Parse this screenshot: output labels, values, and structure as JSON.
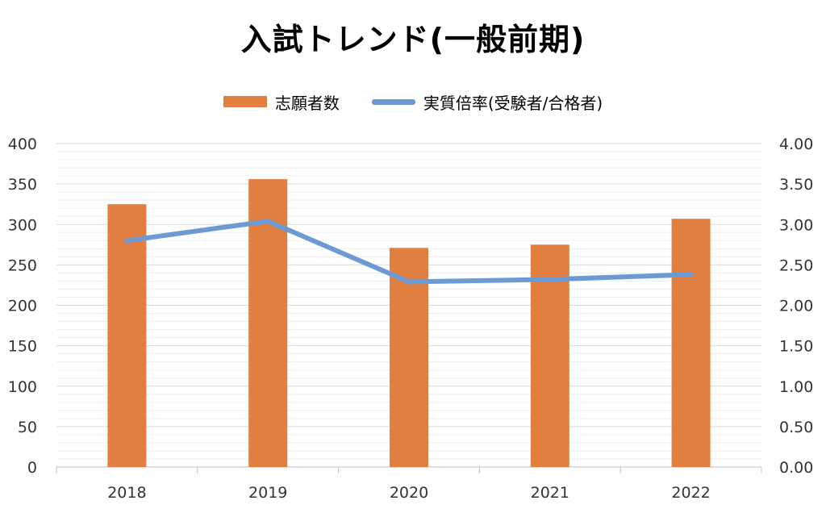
{
  "chart_data": {
    "type": "bar",
    "title": "入試トレンド(一般前期)",
    "categories": [
      "2018",
      "2019",
      "2020",
      "2021",
      "2022"
    ],
    "series": [
      {
        "name": "志願者数",
        "kind": "bar",
        "axis": "left",
        "color": "#E07F40",
        "values": [
          325,
          356,
          271,
          275,
          307
        ]
      },
      {
        "name": "実質倍率(受験者/合格者)",
        "kind": "line",
        "axis": "right",
        "color": "#6D9AD3",
        "values": [
          2.8,
          3.04,
          2.29,
          2.32,
          2.38
        ]
      }
    ],
    "y_left": {
      "min": 0,
      "max": 400,
      "ticks": [
        "0",
        "50",
        "100",
        "150",
        "200",
        "250",
        "300",
        "350",
        "400"
      ]
    },
    "y_right": {
      "min": 0,
      "max": 4,
      "ticks": [
        "0.00",
        "0.50",
        "1.00",
        "1.50",
        "2.00",
        "2.50",
        "3.00",
        "3.50",
        "4.00"
      ]
    },
    "grid": true,
    "legend_position": "top"
  }
}
